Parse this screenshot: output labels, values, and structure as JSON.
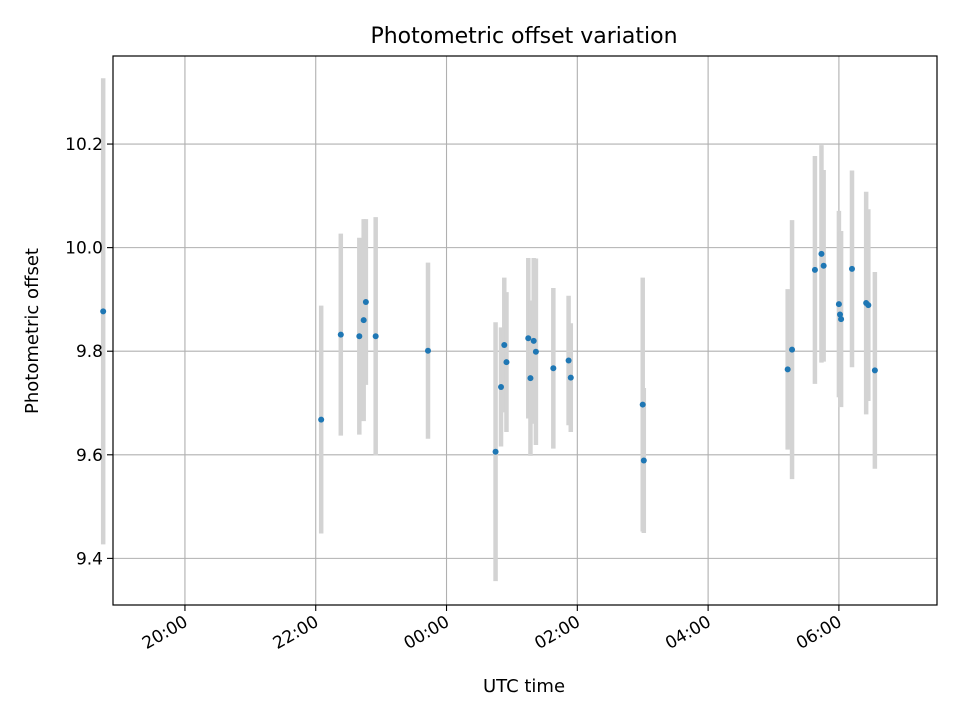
{
  "chart_data": {
    "type": "scatter",
    "title": "Photometric offset variation",
    "xlabel": "UTC time",
    "ylabel": "Photometric offset",
    "grid": true,
    "colors": {
      "point": "#1f77b4",
      "errorbar": "#d3d3d3",
      "grid": "#b0b0b0",
      "axes": "#000000"
    },
    "x_ticks": [
      "20:00",
      "22:00",
      "00:00",
      "02:00",
      "04:00",
      "06:00"
    ],
    "y_ticks": [
      "9.4",
      "9.6",
      "9.8",
      "10.0",
      "10.2"
    ],
    "xlim": [
      "18:54",
      "07:30"
    ],
    "ylim": [
      9.31,
      10.37
    ],
    "points": [
      {
        "t": "18:45",
        "y": 9.877,
        "err": 0.45
      },
      {
        "t": "22:05",
        "y": 9.668,
        "err": 0.22
      },
      {
        "t": "22:23",
        "y": 9.832,
        "err": 0.195
      },
      {
        "t": "22:40",
        "y": 9.829,
        "err": 0.19
      },
      {
        "t": "22:44",
        "y": 9.86,
        "err": 0.195
      },
      {
        "t": "22:46",
        "y": 9.895,
        "err": 0.16
      },
      {
        "t": "22:55",
        "y": 9.829,
        "err": 0.23
      },
      {
        "t": "23:43",
        "y": 9.801,
        "err": 0.17
      },
      {
        "t": "00:45",
        "y": 9.606,
        "err": 0.25
      },
      {
        "t": "00:50",
        "y": 9.731,
        "err": 0.115
      },
      {
        "t": "00:53",
        "y": 9.812,
        "err": 0.13
      },
      {
        "t": "00:55",
        "y": 9.779,
        "err": 0.135
      },
      {
        "t": "01:15",
        "y": 9.825,
        "err": 0.155
      },
      {
        "t": "01:17",
        "y": 9.748,
        "err": 0.15
      },
      {
        "t": "01:20",
        "y": 9.82,
        "err": 0.16
      },
      {
        "t": "01:22",
        "y": 9.799,
        "err": 0.18
      },
      {
        "t": "01:38",
        "y": 9.767,
        "err": 0.155
      },
      {
        "t": "01:52",
        "y": 9.782,
        "err": 0.125
      },
      {
        "t": "01:54",
        "y": 9.749,
        "err": 0.105
      },
      {
        "t": "03:00",
        "y": 9.697,
        "err": 0.245
      },
      {
        "t": "03:01",
        "y": 9.589,
        "err": 0.14
      },
      {
        "t": "05:13",
        "y": 9.765,
        "err": 0.155
      },
      {
        "t": "05:17",
        "y": 9.803,
        "err": 0.25
      },
      {
        "t": "05:38",
        "y": 9.957,
        "err": 0.22
      },
      {
        "t": "05:44",
        "y": 9.988,
        "err": 0.21
      },
      {
        "t": "05:46",
        "y": 9.965,
        "err": 0.185
      },
      {
        "t": "06:00",
        "y": 9.891,
        "err": 0.18
      },
      {
        "t": "06:01",
        "y": 9.871,
        "err": 0.16
      },
      {
        "t": "06:02",
        "y": 9.862,
        "err": 0.17
      },
      {
        "t": "06:12",
        "y": 9.959,
        "err": 0.19
      },
      {
        "t": "06:25",
        "y": 9.893,
        "err": 0.215
      },
      {
        "t": "06:27",
        "y": 9.889,
        "err": 0.185
      },
      {
        "t": "06:33",
        "y": 9.763,
        "err": 0.19
      }
    ]
  }
}
